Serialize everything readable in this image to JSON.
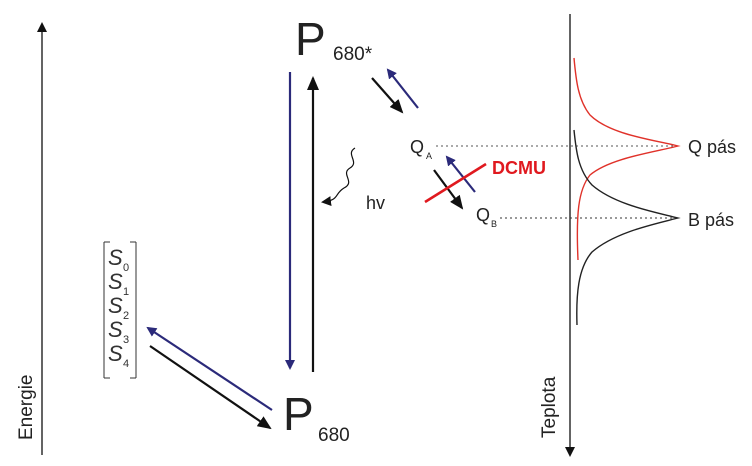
{
  "axes": {
    "energy_label": "Energie",
    "temperature_label": "Teplota"
  },
  "states": {
    "p680_excited": {
      "letter": "P",
      "subscript": "680*"
    },
    "p680": {
      "letter": "P",
      "subscript": "680"
    },
    "qa": {
      "letter": "Q",
      "subscript": "A"
    },
    "qb": {
      "letter": "Q",
      "subscript": "B"
    }
  },
  "s_states": [
    {
      "letter": "S",
      "subscript": "0"
    },
    {
      "letter": "S",
      "subscript": "1"
    },
    {
      "letter": "S",
      "subscript": "2"
    },
    {
      "letter": "S",
      "subscript": "3"
    },
    {
      "letter": "S",
      "subscript": "4"
    }
  ],
  "labels": {
    "photon": "hv",
    "inhibitor": "DCMU",
    "q_band": "Q pás",
    "b_band": "B pás"
  },
  "colors": {
    "forward_arrow": "#111111",
    "back_arrow": "#2b2a7a",
    "q_band_curve": "#e0322a",
    "b_band_curve": "#222222",
    "dcmu": "#e0191f",
    "text": "#222222"
  }
}
